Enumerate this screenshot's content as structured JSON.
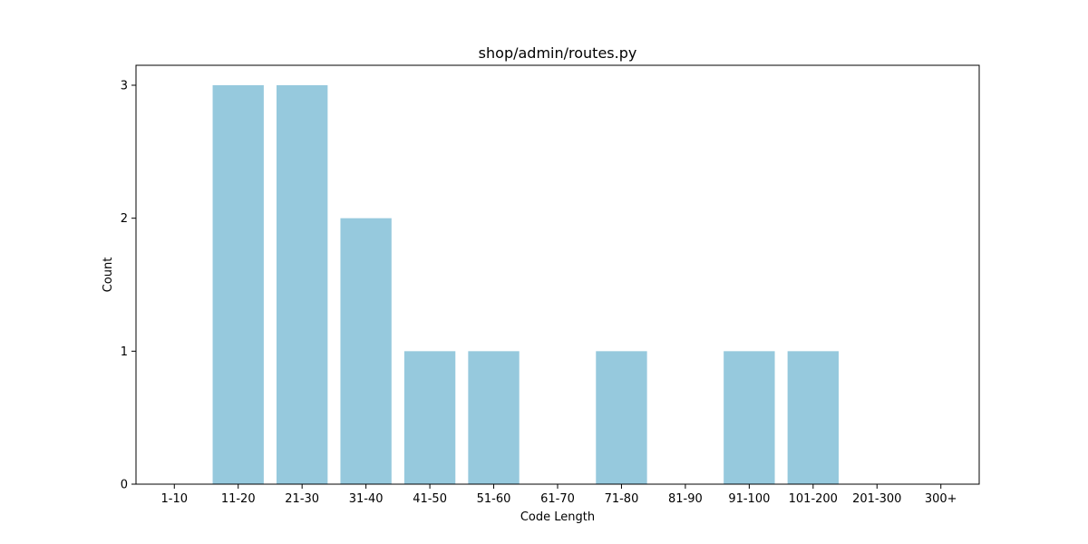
{
  "chart_data": {
    "type": "bar",
    "title": "shop/admin/routes.py",
    "xlabel": "Code Length",
    "ylabel": "Count",
    "categories": [
      "1-10",
      "11-20",
      "21-30",
      "31-40",
      "41-50",
      "51-60",
      "61-70",
      "71-80",
      "81-90",
      "91-100",
      "101-200",
      "201-300",
      "300+"
    ],
    "values": [
      0,
      3,
      3,
      2,
      1,
      1,
      0,
      1,
      0,
      1,
      1,
      0,
      0
    ],
    "ylim": [
      0,
      3.15
    ],
    "yticks": [
      0,
      1,
      2,
      3
    ],
    "bar_color": "#96c9dd",
    "grid": false,
    "legend": "none"
  }
}
